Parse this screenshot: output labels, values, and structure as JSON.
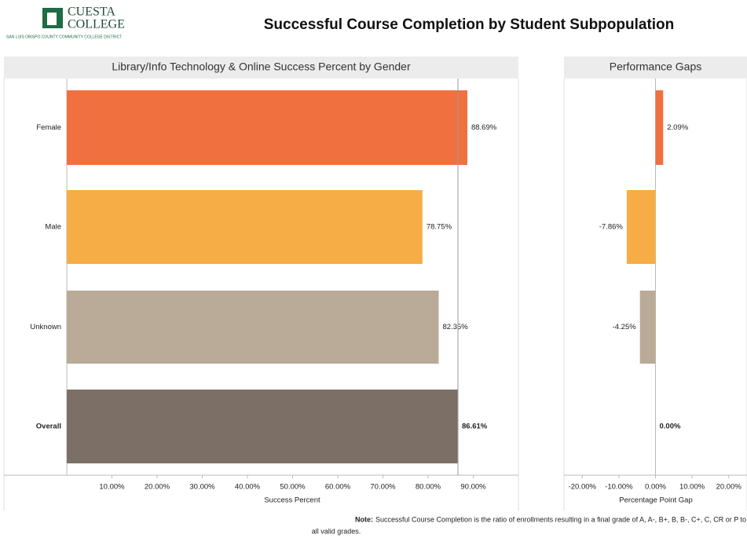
{
  "header": {
    "logo_line1": "CUESTA",
    "logo_line2": "COLLEGE",
    "logo_tagline": "SAN LUIS OBISPO COUNTY COMMUNITY COLLEGE DISTRICT",
    "title": "Successful Course Completion by Student Subpopulation"
  },
  "chart_data": [
    {
      "type": "bar",
      "orientation": "horizontal",
      "title": "Library/Info Technology & Online Success Percent by Gender",
      "categories": [
        "Female",
        "Male",
        "Unknown",
        "Overall"
      ],
      "values": [
        88.69,
        78.75,
        82.35,
        86.61
      ],
      "value_labels": [
        "88.69%",
        "78.75%",
        "82.35%",
        "86.61%"
      ],
      "colors": [
        "#f07040",
        "#f7ad45",
        "#b9ab97",
        "#7c7066"
      ],
      "xlim": [
        0,
        100
      ],
      "xticks": [
        {
          "value": 10,
          "label": "10.00%"
        },
        {
          "value": 20,
          "label": "20.00%"
        },
        {
          "value": 30,
          "label": "30.00%"
        },
        {
          "value": 40,
          "label": "40.00%"
        },
        {
          "value": 50,
          "label": "50.00%"
        },
        {
          "value": 60,
          "label": "60.00%"
        },
        {
          "value": 70,
          "label": "70.00%"
        },
        {
          "value": 80,
          "label": "80.00%"
        },
        {
          "value": 90,
          "label": "90.00%"
        }
      ],
      "xlabel": "Success Percent"
    },
    {
      "type": "bar",
      "orientation": "horizontal",
      "title": "Performance Gaps",
      "values": [
        2.09,
        -7.86,
        -4.25,
        0.0
      ],
      "value_labels": [
        "2.09%",
        "-7.86%",
        "-4.25%",
        "0.00%"
      ],
      "colors": [
        "#f07040",
        "#f7ad45",
        "#b9ab97",
        "#7c7066"
      ],
      "xlim": [
        -25,
        25
      ],
      "xticks": [
        {
          "value": -20,
          "label": "-20.00%"
        },
        {
          "value": -10,
          "label": "-10.00%"
        },
        {
          "value": 0,
          "label": "0.00%"
        },
        {
          "value": 10,
          "label": "10.00%"
        },
        {
          "value": 20,
          "label": "20.00%"
        }
      ],
      "xlabel": "Percentage Point Gap"
    }
  ],
  "note": {
    "label": "Note:",
    "line1": "Successful Course Completion is the ratio of enrollments resulting in a final grade of A, A-, B+, B, B-, C+, C, CR or P to",
    "line2": "all valid grades."
  }
}
